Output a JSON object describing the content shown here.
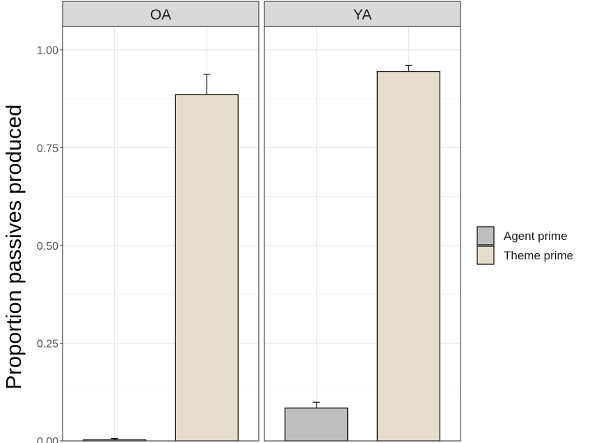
{
  "chart_data": {
    "type": "bar",
    "ylabel": "Proportion passives produced",
    "xlabel": "",
    "ylim": [
      0,
      1.06
    ],
    "yticks": [
      0,
      0.25,
      0.5,
      0.75,
      1.0
    ],
    "ytick_labels": [
      "0.00",
      "0.25",
      "0.50",
      "0.75",
      "1.00"
    ],
    "grid": true,
    "legend_position": "right",
    "series": [
      {
        "name": "Agent prime",
        "color": "#bebebe"
      },
      {
        "name": "Theme prime",
        "color": "#e5dccc"
      }
    ],
    "panels": [
      {
        "label": "OA",
        "bars": [
          {
            "series": "Agent prime",
            "value": 0.003,
            "error_upper": 0.006
          },
          {
            "series": "Theme prime",
            "value": 0.886,
            "error_upper": 0.938
          }
        ]
      },
      {
        "label": "YA",
        "bars": [
          {
            "series": "Agent prime",
            "value": 0.084,
            "error_upper": 0.099
          },
          {
            "series": "Theme prime",
            "value": 0.945,
            "error_upper": 0.96
          }
        ]
      }
    ]
  }
}
